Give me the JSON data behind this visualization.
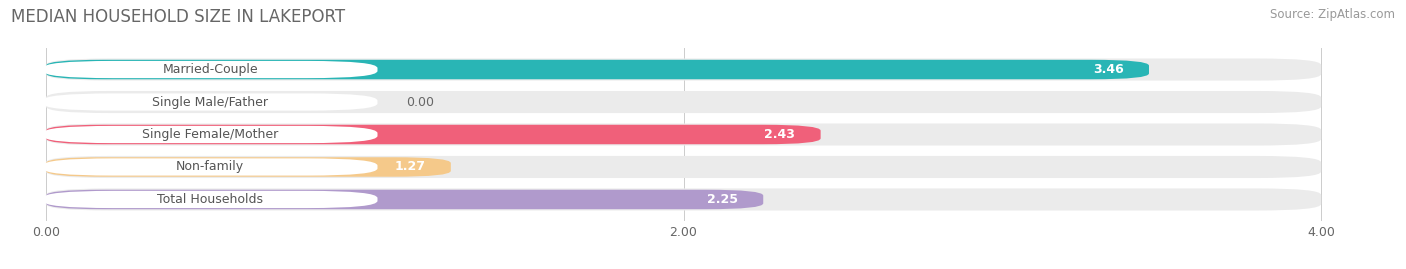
{
  "title": "MEDIAN HOUSEHOLD SIZE IN LAKEPORT",
  "source": "Source: ZipAtlas.com",
  "categories": [
    "Married-Couple",
    "Single Male/Father",
    "Single Female/Mother",
    "Non-family",
    "Total Households"
  ],
  "values": [
    3.46,
    0.0,
    2.43,
    1.27,
    2.25
  ],
  "bar_colors": [
    "#29b5b5",
    "#a8c4e8",
    "#f0607a",
    "#f5c98a",
    "#b09acc"
  ],
  "background_color": "#ffffff",
  "bar_background": "#ebebeb",
  "xlim": [
    0,
    4.0
  ],
  "xticks": [
    0.0,
    2.0,
    4.0
  ],
  "title_fontsize": 12,
  "source_fontsize": 8.5,
  "label_fontsize": 9,
  "value_fontsize": 9
}
